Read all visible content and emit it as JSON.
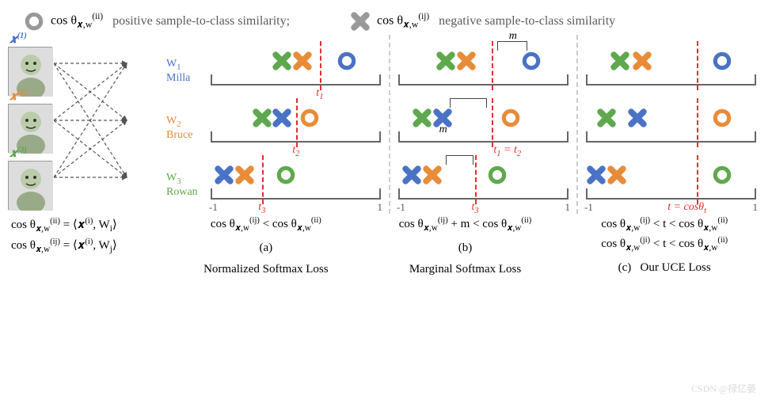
{
  "colors": {
    "blue": "#4a73c5",
    "orange": "#e88c3a",
    "green": "#5fa84e",
    "grey": "#999999",
    "red": "#e03030",
    "axis": "#666666",
    "text": "#5a5a5a"
  },
  "legend": {
    "positive_formula": "cos θ<sub>𝒙,w</sub><sup>(ii)</sup>",
    "positive_text": "positive sample-to-class similarity;",
    "negative_formula": "cos θ<sub>𝒙,w</sub><sup>(ij)</sup>",
    "negative_text": "negative sample-to-class similarity"
  },
  "samples": [
    {
      "label": "𝒙<sup>(1)</sup>",
      "color_key": "blue"
    },
    {
      "label": "𝒙<sup>(2)</sup>",
      "color_key": "orange"
    },
    {
      "label": "𝒙<sup>(3)</sup>",
      "color_key": "green"
    }
  ],
  "weights": [
    {
      "w": "W<sub>1</sub>",
      "name": "Milla",
      "color_key": "blue"
    },
    {
      "w": "W<sub>2</sub>",
      "name": "Bruce",
      "color_key": "orange"
    },
    {
      "w": "W<sub>3</sub>",
      "name": "Rowan",
      "color_key": "green"
    }
  ],
  "axis": {
    "min_label": "-1",
    "max_label": "1"
  },
  "panels": {
    "a": {
      "rows": [
        {
          "markers": [
            {
              "type": "x",
              "color_key": "green",
              "pos": 0.42
            },
            {
              "type": "x",
              "color_key": "orange",
              "pos": 0.54
            },
            {
              "type": "o",
              "color_key": "blue",
              "pos": 0.8
            }
          ],
          "threshold": {
            "pos": 0.64,
            "label": "t<sub>1</sub>",
            "label_pos": 0.62
          }
        },
        {
          "markers": [
            {
              "type": "x",
              "color_key": "green",
              "pos": 0.3
            },
            {
              "type": "x",
              "color_key": "blue",
              "pos": 0.42
            },
            {
              "type": "o",
              "color_key": "orange",
              "pos": 0.58
            }
          ],
          "threshold": {
            "pos": 0.5,
            "label": "t<sub>2</sub>",
            "label_pos": 0.48
          }
        },
        {
          "markers": [
            {
              "type": "x",
              "color_key": "blue",
              "pos": 0.08
            },
            {
              "type": "x",
              "color_key": "orange",
              "pos": 0.2
            },
            {
              "type": "o",
              "color_key": "green",
              "pos": 0.44
            }
          ],
          "threshold": {
            "pos": 0.3,
            "label": "t<sub>3</sub>",
            "label_pos": 0.28
          }
        }
      ],
      "formula": "cos θ<sub>𝒙,w</sub><sup>(ij)</sup> &lt; cos θ<sub>𝒙,w</sub><sup>(ii)</sup>",
      "tag": "(a)",
      "caption": "Normalized Softmax Loss"
    },
    "b": {
      "rows": [
        {
          "markers": [
            {
              "type": "x",
              "color_key": "green",
              "pos": 0.28
            },
            {
              "type": "x",
              "color_key": "orange",
              "pos": 0.4
            },
            {
              "type": "o",
              "color_key": "blue",
              "pos": 0.78
            }
          ],
          "threshold": {
            "pos": 0.55,
            "label": "",
            "label_pos": 0.5
          },
          "m_brace": {
            "pos": 0.58,
            "label": "m",
            "width": 0.18,
            "label_below": false
          }
        },
        {
          "markers": [
            {
              "type": "x",
              "color_key": "green",
              "pos": 0.14
            },
            {
              "type": "x",
              "color_key": "blue",
              "pos": 0.26
            },
            {
              "type": "o",
              "color_key": "orange",
              "pos": 0.66
            }
          ],
          "threshold": {
            "pos": 0.55,
            "label": "t<sub>1</sub> = t<sub>2</sub>",
            "label_pos": 0.56
          },
          "m_brace": {
            "pos": 0.3,
            "label": "m",
            "width": 0.22,
            "label_below": true
          }
        },
        {
          "markers": [
            {
              "type": "x",
              "color_key": "blue",
              "pos": 0.08
            },
            {
              "type": "x",
              "color_key": "orange",
              "pos": 0.2
            },
            {
              "type": "o",
              "color_key": "green",
              "pos": 0.58
            }
          ],
          "threshold": {
            "pos": 0.45,
            "label": "t<sub>3</sub>",
            "label_pos": 0.43
          },
          "m_brace": {
            "pos": 0.28,
            "label": "",
            "width": 0.16,
            "label_below": false
          }
        }
      ],
      "formula": "cos θ<sub>𝒙,w</sub><sup>(ij)</sup> + m &lt; cos θ<sub>𝒙,w</sub><sup>(ii)</sup>",
      "tag": "(b)",
      "caption": "Marginal Softmax Loss"
    },
    "c": {
      "rows": [
        {
          "markers": [
            {
              "type": "x",
              "color_key": "green",
              "pos": 0.2
            },
            {
              "type": "x",
              "color_key": "orange",
              "pos": 0.33
            },
            {
              "type": "o",
              "color_key": "blue",
              "pos": 0.8
            }
          ],
          "threshold": {
            "pos": 0.65,
            "label": "",
            "label_pos": 0.63
          }
        },
        {
          "markers": [
            {
              "type": "x",
              "color_key": "green",
              "pos": 0.12
            },
            {
              "type": "x",
              "color_key": "blue",
              "pos": 0.3
            },
            {
              "type": "o",
              "color_key": "orange",
              "pos": 0.8
            }
          ],
          "threshold": {
            "pos": 0.65,
            "label": "",
            "label_pos": 0.63
          }
        },
        {
          "markers": [
            {
              "type": "x",
              "color_key": "blue",
              "pos": 0.06
            },
            {
              "type": "x",
              "color_key": "orange",
              "pos": 0.18
            },
            {
              "type": "o",
              "color_key": "green",
              "pos": 0.8
            }
          ],
          "threshold": {
            "pos": 0.65,
            "label": "t = cosθ<sub>t</sub>",
            "label_pos": 0.48
          }
        }
      ],
      "formula": "cos θ<sub>𝒙,w</sub><sup>(ij)</sup> &lt; t &lt; cos θ<sub>𝒙,w</sub><sup>(ii)</sup>",
      "formula2": "cos θ<sub>𝒙,w</sub><sup>(ji)</sup> &lt; t &lt; cos θ<sub>𝒙,w</sub><sup>(ii)</sup>",
      "tag": "(c)",
      "caption": "Our UCE Loss"
    }
  },
  "bottom_left": {
    "line1": "cos θ<sub>𝒙,w</sub><sup>(ii)</sup> = ⟨𝒙<sup>(i)</sup>, W<sub>i</sub>⟩",
    "line2": "cos θ<sub>𝒙,w</sub><sup>(ij)</sup> = ⟨𝒙<sup>(i)</sup>, W<sub>j</sub>⟩"
  },
  "watermark": "CSDN @禄亿萎"
}
